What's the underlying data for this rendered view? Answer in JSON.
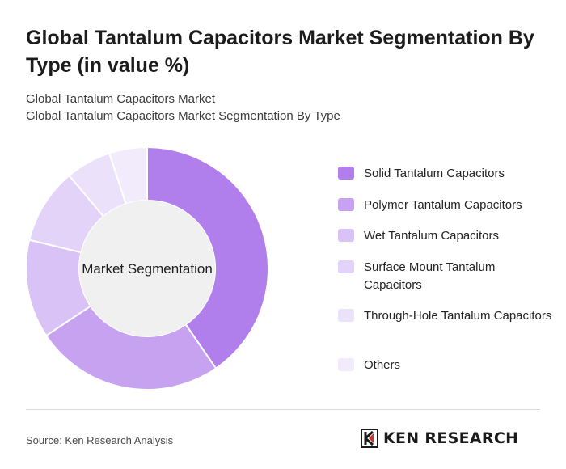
{
  "title": "Global Tantalum Capacitors Market Segmentation By Type (in value %)",
  "subtitle_1": "Global Tantalum Capacitors Market",
  "subtitle_2": "Global Tantalum Capacitors Market Segmentation By Type",
  "center_label": "Market Segmentation",
  "source": "Source: Ken Research Analysis",
  "logo_text": "KEN RESEARCH",
  "colors": {
    "slices": [
      "#b07fec",
      "#c6a2f0",
      "#d9c2f6",
      "#e3d3f8",
      "#ece1fa",
      "#f2ebfc"
    ],
    "center": "#f0f0f0"
  },
  "chart_data": {
    "type": "pie",
    "title": "Global Tantalum Capacitors Market Segmentation By Type (in value %)",
    "categories": [
      "Solid Tantalum Capacitors",
      "Polymer Tantalum Capacitors",
      "Wet Tantalum Capacitors",
      "Surface Mount Tantalum Capacitors",
      "Through-Hole Tantalum Capacitors",
      "Others"
    ],
    "values": [
      40,
      25,
      13,
      10,
      6,
      5
    ],
    "legend_position": "right",
    "donut": true
  }
}
